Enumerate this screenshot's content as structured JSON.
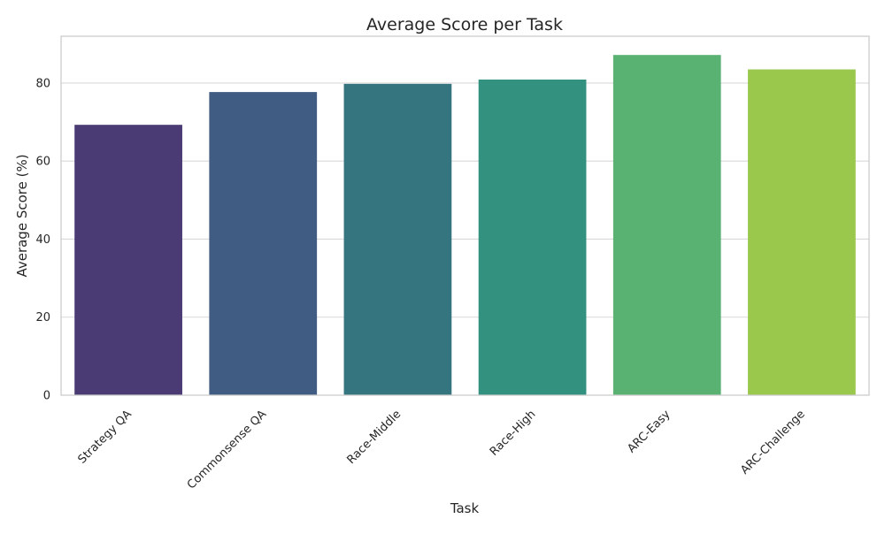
{
  "chart_data": {
    "type": "bar",
    "title": "Average Score per Task",
    "xlabel": "Task",
    "ylabel": "Average Score (%)",
    "categories": [
      "Strategy QA",
      "Commonsense QA",
      "Race-Middle",
      "Race-High",
      "ARC-Easy",
      "ARC-Challenge"
    ],
    "values": [
      69.3,
      77.7,
      79.8,
      80.9,
      87.2,
      83.5
    ],
    "colors": [
      "#4a3b74",
      "#405c82",
      "#35757f",
      "#32917f",
      "#59b272",
      "#99c84d"
    ],
    "ylim": [
      0,
      92
    ],
    "yticks": [
      0,
      20,
      40,
      60,
      80
    ],
    "grid": true,
    "legend": "none"
  }
}
